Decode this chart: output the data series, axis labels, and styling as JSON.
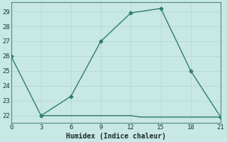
{
  "x_upper": [
    0,
    3,
    6,
    9,
    12,
    15,
    18,
    21
  ],
  "y_upper": [
    26,
    22,
    23.3,
    27,
    28.9,
    29.2,
    25,
    21.9
  ],
  "x_lower": [
    3,
    6,
    9,
    12,
    13,
    15,
    16,
    18,
    19,
    21
  ],
  "y_lower": [
    22,
    22,
    22,
    22,
    21.9,
    21.9,
    21.9,
    21.9,
    21.9,
    21.9
  ],
  "line_color": "#2e7d6e",
  "bg_color": "#c8e8e3",
  "grid_color_major": "#b8d8d3",
  "grid_color_minor": "#d0e8e4",
  "xlabel": "Humidex (Indice chaleur)",
  "xlim": [
    0,
    21
  ],
  "ylim": [
    21.5,
    29.6
  ],
  "xticks": [
    0,
    3,
    6,
    9,
    12,
    15,
    18,
    21
  ],
  "yticks": [
    22,
    23,
    24,
    25,
    26,
    27,
    28,
    29
  ],
  "marker_indices": [
    0,
    1,
    2,
    3,
    4,
    5,
    6,
    7
  ]
}
